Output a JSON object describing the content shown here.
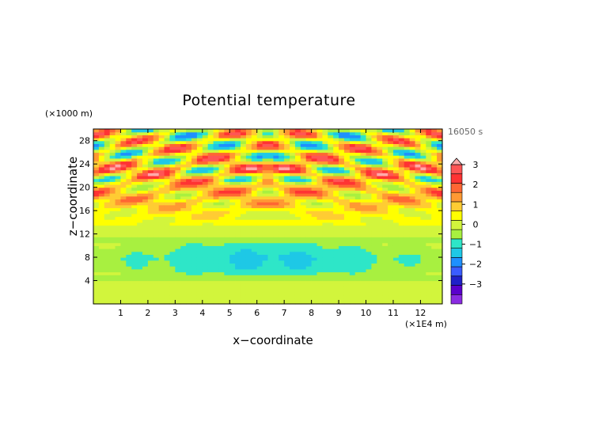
{
  "chart_data": {
    "type": "heatmap",
    "title": "Potential temperature",
    "xlabel": "x−coordinate",
    "ylabel": "z−coordinate",
    "x_unit": "(×1E4 m)",
    "y_unit": "(×1000 m)",
    "time_label": "16050 s",
    "xlim": [
      0,
      12.8
    ],
    "ylim": [
      0,
      30
    ],
    "x_ticks": [
      "1",
      "2",
      "3",
      "4",
      "5",
      "6",
      "7",
      "8",
      "9",
      "10",
      "11",
      "12"
    ],
    "y_ticks": [
      "4",
      "8",
      "12",
      "16",
      "20",
      "24",
      "28"
    ],
    "colorbar": {
      "tick_labels": [
        "3",
        "2",
        "1",
        "0",
        "−1",
        "−2",
        "−3"
      ],
      "levels": [
        -3.5,
        -3,
        -2.5,
        -2,
        -1.5,
        -1,
        -0.5,
        0,
        0.5,
        1,
        1.5,
        2,
        2.5,
        3,
        3.5
      ],
      "colors": [
        "#8a2be2",
        "#5a00cc",
        "#2020c8",
        "#3a5cff",
        "#1e90ff",
        "#1ec8e6",
        "#2ee6c8",
        "#a8f040",
        "#d2f53c",
        "#ffff00",
        "#ffcc33",
        "#ff9933",
        "#ff6633",
        "#ff3333",
        "#ff5555",
        "#ffaaaa"
      ]
    },
    "field_description_rows_z_km": [
      0,
      2,
      4,
      6,
      8,
      10,
      12,
      14,
      16,
      18,
      20,
      22,
      24,
      26,
      28,
      30
    ],
    "field_description_mean_values": [
      0.3,
      0.1,
      0.0,
      -0.6,
      -0.8,
      -0.4,
      0.1,
      0.6,
      0.9,
      1.1,
      1.3,
      1.0,
      1.2,
      0.8,
      0.6,
      0.5
    ]
  }
}
